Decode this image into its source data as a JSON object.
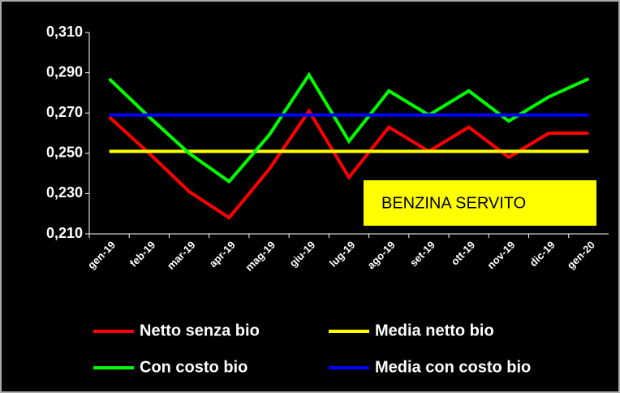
{
  "chart_data": {
    "type": "line",
    "annotation": "BENZINA SERVITO",
    "categories": [
      "gen-19",
      "feb-19",
      "mar-19",
      "apr-19",
      "mag-19",
      "giu-19",
      "lug-19",
      "ago-19",
      "set-19",
      "ott-19",
      "nov-19",
      "dic-19",
      "gen-20"
    ],
    "series": [
      {
        "name": "Netto senza bio",
        "color": "#ff0000",
        "values": [
          0.268,
          0.25,
          0.231,
          0.218,
          0.242,
          0.271,
          0.238,
          0.263,
          0.251,
          0.263,
          0.248,
          0.26,
          0.26
        ]
      },
      {
        "name": "Media netto bio",
        "color": "#ffff00",
        "values": [
          0.251,
          0.251,
          0.251,
          0.251,
          0.251,
          0.251,
          0.251,
          0.251,
          0.251,
          0.251,
          0.251,
          0.251,
          0.251
        ]
      },
      {
        "name": "Con costo bio",
        "color": "#00ff00",
        "values": [
          0.287,
          0.268,
          0.25,
          0.236,
          0.259,
          0.289,
          0.256,
          0.281,
          0.269,
          0.281,
          0.266,
          0.278,
          0.287
        ]
      },
      {
        "name": "Media con costo bio",
        "color": "#0000ff",
        "values": [
          0.269,
          0.269,
          0.269,
          0.269,
          0.269,
          0.269,
          0.269,
          0.269,
          0.269,
          0.269,
          0.269,
          0.269,
          0.269
        ]
      }
    ],
    "ylim": [
      0.21,
      0.31
    ],
    "yticks": [
      {
        "value": 0.21,
        "label": "0,210"
      },
      {
        "value": 0.23,
        "label": "0,230"
      },
      {
        "value": 0.25,
        "label": "0,250"
      },
      {
        "value": 0.27,
        "label": "0,270"
      },
      {
        "value": 0.29,
        "label": "0,290"
      },
      {
        "value": 0.31,
        "label": "0,310"
      }
    ],
    "grid": false,
    "legend": "bottom"
  }
}
